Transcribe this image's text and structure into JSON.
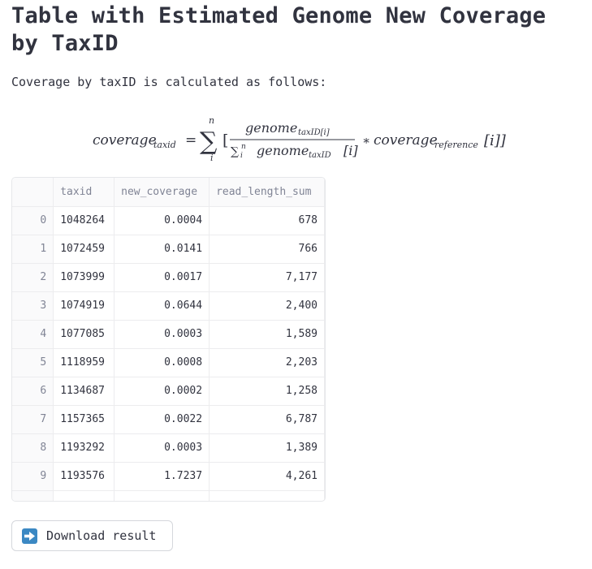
{
  "page": {
    "title": "Table with Estimated Genome New Coverage by TaxID",
    "intro": "Coverage by taxID is calculated as follows:"
  },
  "formula": {
    "lhs": "coverage",
    "lhs_sub": "taxid",
    "equals": "=",
    "sum_upper": "n",
    "sum_lower": "i",
    "numerator": "genome",
    "numerator_sub": "taxID[i]",
    "denominator": "genome",
    "denominator_sub": "taxID",
    "denominator_index": "[i]",
    "operator": "∗",
    "rhs": "coverage",
    "rhs_sub": "reference",
    "rhs_index": "[i]]"
  },
  "table": {
    "columns": [
      "",
      "taxid",
      "new_coverage",
      "read_length_sum"
    ],
    "rows": [
      {
        "index": "0",
        "taxid": "1048264",
        "new_coverage": "0.0004",
        "read_length_sum": "678"
      },
      {
        "index": "1",
        "taxid": "1072459",
        "new_coverage": "0.0141",
        "read_length_sum": "766"
      },
      {
        "index": "2",
        "taxid": "1073999",
        "new_coverage": "0.0017",
        "read_length_sum": "7,177"
      },
      {
        "index": "3",
        "taxid": "1074919",
        "new_coverage": "0.0644",
        "read_length_sum": "2,400"
      },
      {
        "index": "4",
        "taxid": "1077085",
        "new_coverage": "0.0003",
        "read_length_sum": "1,589"
      },
      {
        "index": "5",
        "taxid": "1118959",
        "new_coverage": "0.0008",
        "read_length_sum": "2,203"
      },
      {
        "index": "6",
        "taxid": "1134687",
        "new_coverage": "0.0002",
        "read_length_sum": "1,258"
      },
      {
        "index": "7",
        "taxid": "1157365",
        "new_coverage": "0.0022",
        "read_length_sum": "6,787"
      },
      {
        "index": "8",
        "taxid": "1193292",
        "new_coverage": "0.0003",
        "read_length_sum": "1,389"
      },
      {
        "index": "9",
        "taxid": "1193576",
        "new_coverage": "1.7237",
        "read_length_sum": "4,261"
      }
    ]
  },
  "download": {
    "label": "Download result",
    "icon": "right-arrow-icon",
    "icon_color": "#3b88c3"
  }
}
